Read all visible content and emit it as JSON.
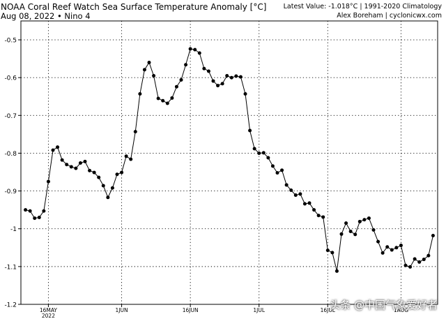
{
  "header": {
    "title_line1": "NOAA Coral Reef Watch Sea Surface Temperature Anomaly [°C]",
    "title_line2": "Aug 08, 2022  •  Nino 4",
    "right_line1": "Latest Value: -1.018°C | 1991-2020 Climatology",
    "right_line2": "Alex Boreham | cyclonicwx.com"
  },
  "watermark": "头条 @中国气象爱好者",
  "chart_data": {
    "type": "line",
    "title": "NOAA Coral Reef Watch Sea Surface Temperature Anomaly [°C]",
    "subtitle": "Aug 08, 2022 • Nino 4",
    "xlabel": "",
    "ylabel": "",
    "ylim": [
      -1.2,
      -0.45
    ],
    "yticks": [
      -1.2,
      -1.1,
      -1.0,
      -0.9,
      -0.8,
      -0.7,
      -0.6,
      -0.5
    ],
    "ytick_labels": [
      "-1.2",
      "-1.1",
      "-1",
      "-0.9",
      "-0.8",
      "-0.7",
      "-0.6",
      "-0.5"
    ],
    "x_start": "2022-05-10",
    "x_end": "2022-08-09",
    "xticks": [
      {
        "date": "2022-05-16",
        "label": "16MAY",
        "sublabel": "2022"
      },
      {
        "date": "2022-06-01",
        "label": "1JUN",
        "sublabel": ""
      },
      {
        "date": "2022-06-16",
        "label": "16JUN",
        "sublabel": ""
      },
      {
        "date": "2022-07-01",
        "label": "1JUL",
        "sublabel": ""
      },
      {
        "date": "2022-07-16",
        "label": "16JUL",
        "sublabel": ""
      },
      {
        "date": "2022-08-01",
        "label": "1AUG",
        "sublabel": ""
      }
    ],
    "grid": true,
    "series": [
      {
        "color": "#000000",
        "start_date": "2022-05-11",
        "values": [
          -0.95,
          -0.953,
          -0.972,
          -0.97,
          -0.953,
          -0.875,
          -0.792,
          -0.784,
          -0.818,
          -0.83,
          -0.836,
          -0.84,
          -0.826,
          -0.822,
          -0.846,
          -0.851,
          -0.864,
          -0.886,
          -0.917,
          -0.892,
          -0.856,
          -0.851,
          -0.808,
          -0.816,
          -0.743,
          -0.643,
          -0.579,
          -0.56,
          -0.595,
          -0.655,
          -0.661,
          -0.668,
          -0.654,
          -0.624,
          -0.606,
          -0.566,
          -0.524,
          -0.526,
          -0.535,
          -0.576,
          -0.583,
          -0.609,
          -0.621,
          -0.616,
          -0.595,
          -0.6,
          -0.596,
          -0.598,
          -0.643,
          -0.74,
          -0.788,
          -0.8,
          -0.799,
          -0.812,
          -0.834,
          -0.852,
          -0.845,
          -0.884,
          -0.898,
          -0.911,
          -0.908,
          -0.934,
          -0.932,
          -0.95,
          -0.965,
          -0.969,
          -1.057,
          -1.063,
          -1.112,
          -1.014,
          -0.985,
          -1.007,
          -1.015,
          -0.981,
          -0.976,
          -0.972,
          -1.003,
          -1.034,
          -1.064,
          -1.048,
          -1.056,
          -1.05,
          -1.044,
          -1.097,
          -1.101,
          -1.08,
          -1.088,
          -1.081,
          -1.071,
          -1.018
        ]
      }
    ]
  }
}
